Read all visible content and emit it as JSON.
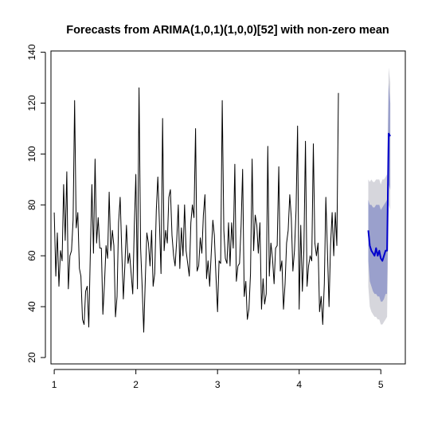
{
  "chart_data": {
    "type": "line",
    "title": "Forecasts from ARIMA(1,0,1)(1,0,0)[52] with non-zero mean",
    "xlabel": "",
    "ylabel": "",
    "xlim": [
      0.96,
      5.3
    ],
    "ylim": [
      17.5,
      140.5
    ],
    "x_ticks": [
      1,
      2,
      3,
      4,
      5
    ],
    "y_ticks": [
      20,
      40,
      60,
      80,
      100,
      120,
      140
    ],
    "grid": false,
    "colors": {
      "history": "#000000",
      "forecast": "#0000cc",
      "pi80": "#9aa0cc",
      "pi95": "#d6d6dc"
    },
    "series": [
      {
        "role": "history",
        "x_start": 1.0,
        "x_step": 0.019231,
        "values": [
          77,
          52,
          69,
          48,
          62,
          58,
          88,
          66,
          93,
          47,
          60,
          62,
          74,
          121,
          71,
          77,
          55,
          52,
          35,
          33,
          46,
          48,
          32,
          62,
          88,
          61,
          98,
          65,
          75,
          63,
          63,
          37,
          49,
          64,
          59,
          85,
          62,
          70,
          64,
          36,
          44,
          73,
          83,
          62,
          43,
          56,
          72,
          57,
          61,
          53,
          45,
          72,
          92,
          47,
          126,
          63,
          48,
          30,
          51,
          69,
          65,
          56,
          70,
          48,
          53,
          78,
          91,
          73,
          53,
          114,
          62,
          70,
          65,
          83,
          86,
          68,
          60,
          56,
          66,
          80,
          55,
          71,
          60,
          80,
          62,
          57,
          52,
          73,
          80,
          75,
          110,
          54,
          56,
          67,
          61,
          76,
          84,
          51,
          58,
          48,
          61,
          74,
          68,
          52,
          38,
          58,
          57,
          121,
          70,
          59,
          57,
          73,
          56,
          73,
          63,
          96,
          50,
          56,
          57,
          72,
          94,
          44,
          50,
          35,
          39,
          53,
          98,
          62,
          76,
          72,
          61,
          73,
          39,
          51,
          41,
          45,
          103,
          52,
          65,
          59,
          49,
          63,
          64,
          95,
          54,
          58,
          39,
          49,
          65,
          70,
          84,
          75,
          54,
          62,
          78,
          111,
          39,
          72,
          46,
          62,
          105,
          48,
          56,
          60,
          58,
          104,
          65,
          60,
          65,
          38,
          44,
          33,
          49,
          83,
          62,
          40,
          64,
          77,
          60,
          77,
          64,
          124
        ]
      },
      {
        "role": "forecast",
        "x_start": 4.8462,
        "x_step": 0.019231,
        "values": [
          70,
          64,
          62,
          61,
          60,
          63,
          60,
          62,
          59,
          58,
          60,
          62,
          62,
          108,
          107
        ]
      }
    ],
    "intervals": {
      "pi80_upper": [
        82,
        80,
        80,
        79,
        79,
        80,
        80,
        80,
        78,
        79,
        80,
        81,
        82,
        128,
        120
      ],
      "pi80_lower": [
        58,
        50,
        48,
        46,
        45,
        45,
        44,
        44,
        42,
        42,
        43,
        45,
        45,
        88,
        86
      ],
      "pi95_upper": [
        90,
        89,
        90,
        89,
        89,
        90,
        90,
        90,
        88,
        90,
        90,
        91,
        92,
        134,
        128
      ],
      "pi95_lower": [
        48,
        40,
        38,
        37,
        36,
        36,
        35,
        35,
        33,
        33,
        34,
        35,
        36,
        80,
        78
      ]
    }
  }
}
